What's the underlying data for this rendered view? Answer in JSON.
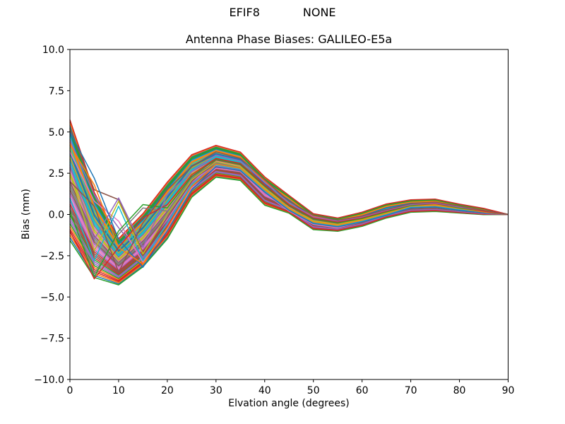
{
  "chart_data": {
    "type": "line",
    "suptitle": "EFIF8            NONE",
    "title": "Antenna Phase Biases: GALILEO-E5a",
    "xlabel": "Elvation angle (degrees)",
    "ylabel": "Bias (mm)",
    "xlim": [
      0,
      90
    ],
    "ylim": [
      -10.0,
      10.0
    ],
    "grid": false,
    "legend": "none",
    "background_color": "#ffffff",
    "text_color": "#000000",
    "spine_color": "#000000",
    "line_width": 1.5,
    "n_lines": 56,
    "xticks": {
      "values": [
        0,
        10,
        20,
        30,
        40,
        50,
        60,
        70,
        80,
        90
      ],
      "labels": [
        "0",
        "10",
        "20",
        "30",
        "40",
        "50",
        "60",
        "70",
        "80",
        "90"
      ]
    },
    "yticks": {
      "values": [
        10.0,
        7.5,
        5.0,
        2.5,
        0.0,
        -2.5,
        -5.0,
        -7.5,
        -10.0
      ],
      "labels": [
        "10.0",
        "7.5",
        "5.0",
        "2.5",
        "0.0",
        "−2.5",
        "−5.0",
        "−7.5",
        "−10.0"
      ]
    },
    "x": [
      0,
      5,
      10,
      15,
      20,
      25,
      30,
      35,
      40,
      45,
      50,
      55,
      60,
      65,
      70,
      75,
      80,
      85,
      90
    ],
    "envelope_top": [
      5.4,
      1.1,
      -1.6,
      -0.1,
      1.8,
      3.5,
      4.1,
      3.7,
      2.2,
      1.1,
      0.0,
      -0.25,
      0.1,
      0.6,
      0.85,
      0.9,
      0.6,
      0.35,
      0.0
    ],
    "envelope_bottom": [
      -1.4,
      -3.7,
      -4.2,
      -3.1,
      -1.4,
      1.1,
      2.3,
      2.1,
      0.6,
      0.1,
      -0.9,
      -1.0,
      -0.7,
      -0.2,
      0.15,
      0.2,
      0.1,
      0.0,
      0.0
    ],
    "family": {
      "u_values": [
        -1.0,
        -0.8,
        -0.6,
        -0.4,
        -0.2,
        0.0,
        0.2,
        0.4,
        0.6,
        0.8,
        1.0
      ],
      "pass_shifts": [
        0.0,
        0.05,
        -0.05,
        0.1
      ]
    },
    "outlier_series": [
      {
        "values": [
          4.5,
          1.2,
          -0.8,
          -2.6,
          -0.6,
          1.9,
          3.0,
          2.7,
          1.4,
          0.3,
          -0.5,
          -0.7,
          -0.4,
          0.0,
          0.45,
          0.5,
          0.3,
          0.15,
          0.0
        ]
      },
      {
        "values": [
          5.2,
          1.5,
          0.9,
          -2.3,
          -0.2,
          2.0,
          3.3,
          3.0,
          1.7,
          0.5,
          -0.3,
          -0.55,
          -0.3,
          0.1,
          0.5,
          0.6,
          0.4,
          0.2,
          0.0
        ]
      },
      {
        "values": [
          3.8,
          0.8,
          -0.4,
          -2.9,
          -0.9,
          1.6,
          2.8,
          2.6,
          1.3,
          0.2,
          -0.6,
          -0.8,
          -0.45,
          -0.05,
          0.4,
          0.45,
          0.25,
          0.1,
          0.0
        ]
      },
      {
        "values": [
          0.5,
          -3.6,
          -1.2,
          0.4,
          0.2,
          2.2,
          3.1,
          2.8,
          1.5,
          0.35,
          -0.45,
          -0.65,
          -0.35,
          0.05,
          0.5,
          0.55,
          0.35,
          0.15,
          0.0
        ]
      },
      {
        "values": [
          2.5,
          -2.2,
          0.8,
          -2.4,
          0.0,
          2.1,
          3.2,
          2.9,
          1.6,
          0.4,
          -0.4,
          -0.6,
          -0.3,
          0.1,
          0.55,
          0.6,
          0.4,
          0.2,
          0.0
        ]
      },
      {
        "values": [
          1.0,
          -2.8,
          0.5,
          -2.8,
          -0.5,
          1.8,
          3.0,
          2.75,
          1.45,
          0.3,
          -0.5,
          -0.7,
          -0.4,
          0.0,
          0.45,
          0.5,
          0.3,
          0.15,
          0.0
        ]
      },
      {
        "values": [
          5.0,
          2.2,
          -1.5,
          -3.2,
          -1.0,
          1.5,
          2.9,
          2.65,
          1.35,
          0.25,
          -0.55,
          -0.75,
          -0.45,
          -0.05,
          0.4,
          0.45,
          0.25,
          0.1,
          0.0
        ]
      },
      {
        "values": [
          4.2,
          1.8,
          -2.0,
          -3.0,
          -0.8,
          1.7,
          3.05,
          2.8,
          1.5,
          0.35,
          -0.45,
          -0.65,
          -0.35,
          0.05,
          0.5,
          0.55,
          0.35,
          0.15,
          0.0
        ]
      },
      {
        "values": [
          0.2,
          -3.8,
          -1.0,
          0.6,
          0.4,
          2.3,
          3.35,
          3.05,
          1.75,
          0.55,
          -0.25,
          -0.5,
          -0.25,
          0.15,
          0.55,
          0.65,
          0.4,
          0.2,
          0.0
        ]
      },
      {
        "values": [
          -1.0,
          -3.9,
          -2.0,
          -0.2,
          0.6,
          2.4,
          3.4,
          3.1,
          1.8,
          0.6,
          -0.2,
          -0.45,
          -0.2,
          0.2,
          0.6,
          0.65,
          0.45,
          0.2,
          0.0
        ]
      },
      {
        "values": [
          3.0,
          -1.5,
          1.0,
          -2.0,
          1.2,
          2.6,
          3.6,
          3.25,
          1.95,
          0.7,
          -0.15,
          -0.4,
          -0.15,
          0.25,
          0.6,
          0.7,
          0.45,
          0.25,
          0.0
        ]
      },
      {
        "values": [
          2.0,
          0.5,
          -3.5,
          -0.5,
          1.5,
          2.9,
          3.8,
          3.4,
          2.1,
          0.8,
          -0.05,
          -0.35,
          -0.1,
          0.3,
          0.65,
          0.75,
          0.5,
          0.25,
          0.0
        ]
      }
    ],
    "colors": [
      "#1f77b4",
      "#ff7f0e",
      "#2ca02c",
      "#d62728",
      "#9467bd",
      "#8c564b",
      "#e377c2",
      "#7f7f7f",
      "#bcbd22",
      "#17becf"
    ]
  }
}
